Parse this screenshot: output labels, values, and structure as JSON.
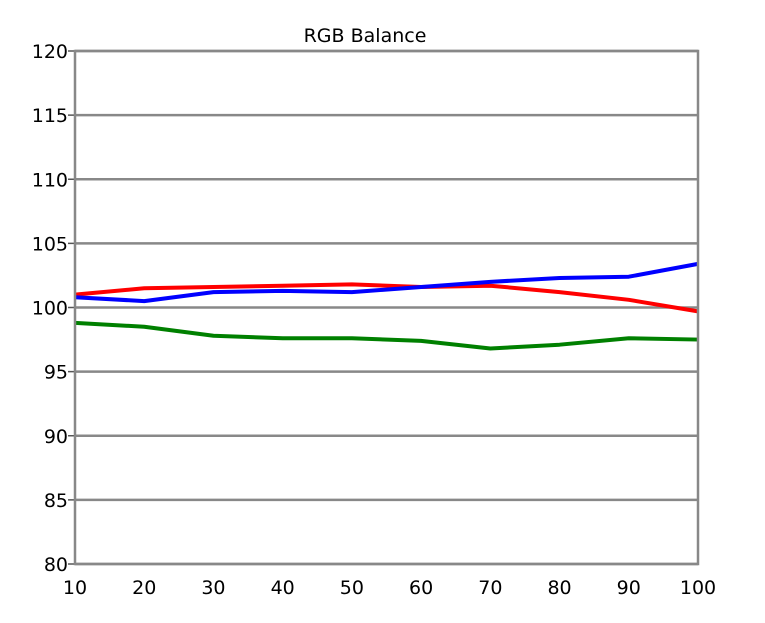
{
  "chart_data": {
    "type": "line",
    "title": "RGB Balance",
    "xlabel": "",
    "ylabel": "",
    "x": [
      10,
      20,
      30,
      40,
      50,
      60,
      70,
      80,
      90,
      100
    ],
    "xlim": [
      10,
      100
    ],
    "ylim": [
      80,
      120
    ],
    "x_ticks": [
      "10",
      "20",
      "30",
      "40",
      "50",
      "60",
      "70",
      "80",
      "90",
      "100"
    ],
    "y_ticks": [
      "80",
      "85",
      "90",
      "95",
      "100",
      "105",
      "110",
      "115",
      "120"
    ],
    "grid": "horizontal",
    "series": [
      {
        "color": "#ff0000",
        "values": [
          101.0,
          101.5,
          101.6,
          101.7,
          101.8,
          101.6,
          101.7,
          101.2,
          100.6,
          99.7
        ]
      },
      {
        "color": "#0000ff",
        "values": [
          100.8,
          100.5,
          101.2,
          101.3,
          101.2,
          101.6,
          102.0,
          102.3,
          102.4,
          103.4
        ]
      },
      {
        "color": "#008000",
        "values": [
          98.8,
          98.5,
          97.8,
          97.6,
          97.6,
          97.4,
          96.8,
          97.1,
          97.6,
          97.5
        ]
      }
    ],
    "colors": {
      "grid": "#888888",
      "axis": "#888888"
    }
  }
}
